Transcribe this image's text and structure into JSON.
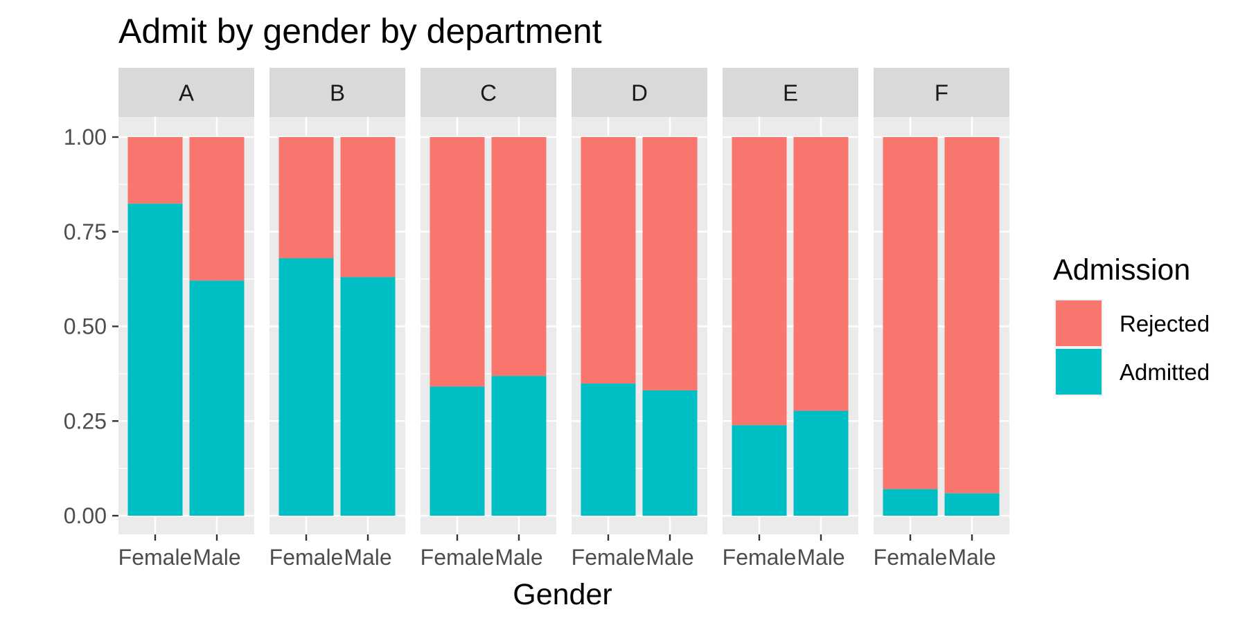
{
  "chart_data": {
    "type": "bar",
    "stacked": true,
    "title": "Admit by gender by department",
    "xlabel": "Gender",
    "ylabel": "",
    "ylim": [
      0,
      1
    ],
    "y_ticks": [
      "0.00",
      "0.25",
      "0.50",
      "0.75",
      "1.00"
    ],
    "y_tick_values": [
      0,
      0.25,
      0.5,
      0.75,
      1
    ],
    "facets": [
      "A",
      "B",
      "C",
      "D",
      "E",
      "F"
    ],
    "categories": [
      "Female",
      "Male"
    ],
    "series": [
      {
        "name": "Admitted",
        "color": "#00BFC4",
        "values": {
          "A": [
            0.824,
            0.621
          ],
          "B": [
            0.68,
            0.63
          ],
          "C": [
            0.341,
            0.369
          ],
          "D": [
            0.349,
            0.331
          ],
          "E": [
            0.239,
            0.277
          ],
          "F": [
            0.07,
            0.059
          ]
        }
      },
      {
        "name": "Rejected",
        "color": "#F8766D",
        "values": {
          "A": [
            0.176,
            0.379
          ],
          "B": [
            0.32,
            0.37
          ],
          "C": [
            0.659,
            0.631
          ],
          "D": [
            0.651,
            0.669
          ],
          "E": [
            0.761,
            0.723
          ],
          "F": [
            0.93,
            0.941
          ]
        }
      }
    ],
    "legend": {
      "title": "Admission",
      "position": "right",
      "items": [
        {
          "label": "Rejected",
          "color": "#F8766D"
        },
        {
          "label": "Admitted",
          "color": "#00BFC4"
        }
      ]
    },
    "grid": true
  }
}
